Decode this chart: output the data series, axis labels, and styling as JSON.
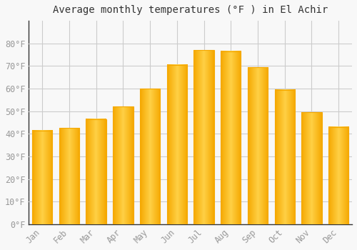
{
  "title": "Average monthly temperatures (°F ) in El Achir",
  "months": [
    "Jan",
    "Feb",
    "Mar",
    "Apr",
    "May",
    "Jun",
    "Jul",
    "Aug",
    "Sep",
    "Oct",
    "Nov",
    "Dec"
  ],
  "values": [
    41.5,
    42.5,
    46.5,
    52,
    60,
    70.5,
    77,
    76.5,
    69.5,
    59.5,
    49.5,
    43
  ],
  "bar_color_center": "#FFD045",
  "bar_color_edge": "#F5A800",
  "background_color": "#F8F8F8",
  "grid_color": "#CCCCCC",
  "text_color": "#999999",
  "axis_color": "#333333",
  "ylim": [
    0,
    90
  ],
  "yticks": [
    0,
    10,
    20,
    30,
    40,
    50,
    60,
    70,
    80
  ],
  "ylabel_suffix": "°F",
  "title_fontsize": 10,
  "tick_fontsize": 8.5
}
